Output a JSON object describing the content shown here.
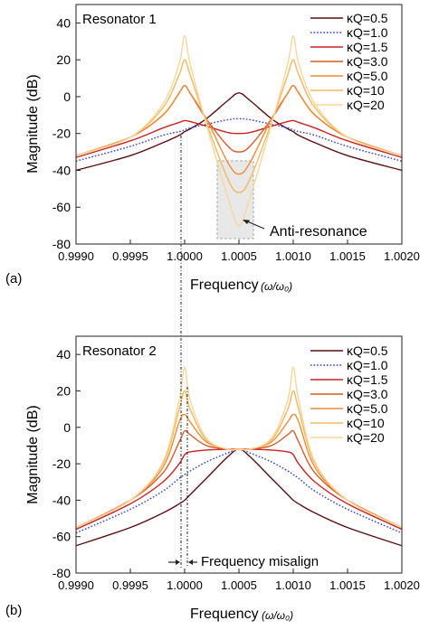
{
  "chart_data": [
    {
      "type": "line",
      "panel_label": "(a)",
      "title": "Resonator 1",
      "xlabel": "Frequency",
      "xlabel_unit": "(ω/ω₀)",
      "ylabel": "Magnitude (dB)",
      "xlim": [
        0.999,
        1.002
      ],
      "ylim": [
        -80,
        50
      ],
      "xticks": [
        "0.9990",
        "0.9995",
        "1.0000",
        "1.0005",
        "1.0010",
        "1.0015",
        "1.0020"
      ],
      "yticks": [
        "-80",
        "-60",
        "-40",
        "-20",
        "0",
        "20",
        "40"
      ],
      "grid": false,
      "legend_position": "top-right",
      "annotation": "Anti-resonance",
      "x": [
        0.999,
        0.9995,
        0.9998,
        0.99995,
        1.0,
        1.00005,
        1.0002,
        1.0004,
        1.0005,
        1.0006,
        1.0008,
        1.00095,
        1.001,
        1.00105,
        1.0012,
        1.0015,
        1.002
      ],
      "series": [
        {
          "name": "κQ=0.5",
          "color": "#5c0f0f",
          "dash": "",
          "values": [
            -40,
            -32,
            -25,
            -21,
            -19,
            -17.5,
            -12,
            -2,
            2,
            -2,
            -12,
            -17.5,
            -19,
            -21,
            -25,
            -32,
            -40
          ]
        },
        {
          "name": "κQ=1.0",
          "color": "#2f3fd6",
          "dash": "1.6,2",
          "values": [
            -35,
            -27,
            -21,
            -19,
            -18,
            -17,
            -15,
            -12.5,
            -12,
            -12.5,
            -15,
            -17,
            -18,
            -19,
            -21,
            -27,
            -35
          ]
        },
        {
          "name": "κQ=1.5",
          "color": "#cc2222",
          "dash": "",
          "values": [
            -33,
            -24,
            -17,
            -14,
            -13,
            -13.5,
            -16,
            -19.5,
            -20,
            -19.5,
            -16,
            -13.5,
            -13,
            -14,
            -17,
            -24,
            -33
          ]
        },
        {
          "name": "κQ=3.0",
          "color": "#d95a2a",
          "dash": "",
          "values": [
            -32,
            -22,
            -10,
            2,
            6,
            2,
            -12,
            -27,
            -30,
            -27,
            -12,
            2,
            6,
            2,
            -10,
            -22,
            -32
          ]
        },
        {
          "name": "κQ=5.0",
          "color": "#f08c35",
          "dash": "",
          "values": [
            -32,
            -22,
            -10,
            2,
            6,
            2,
            -12,
            -36,
            -42,
            -36,
            -12,
            2,
            6,
            2,
            -10,
            -22,
            -32
          ]
        },
        {
          "name": "κQ=10",
          "color": "#f5b85f",
          "dash": "",
          "values": [
            -32,
            -22,
            -6,
            12,
            20,
            12,
            -14,
            -45,
            -52,
            -45,
            -14,
            12,
            20,
            12,
            -6,
            -22,
            -32
          ]
        },
        {
          "name": "κQ=20",
          "color": "#f7d79c",
          "dash": "",
          "values": [
            -32,
            -22,
            -4,
            18,
            33,
            18,
            -15,
            -55,
            -70,
            -55,
            -15,
            18,
            33,
            18,
            -4,
            -22,
            -32
          ]
        }
      ]
    },
    {
      "type": "line",
      "panel_label": "(b)",
      "title": "Resonator 2",
      "xlabel": "Frequency",
      "xlabel_unit": "(ω/ω₀)",
      "ylabel": "Magnitude (dB)",
      "xlim": [
        0.999,
        1.002
      ],
      "ylim": [
        -80,
        50
      ],
      "xticks": [
        "0.9990",
        "0.9995",
        "1.0000",
        "1.0005",
        "1.0010",
        "1.0015",
        "1.0020"
      ],
      "yticks": [
        "-80",
        "-60",
        "-40",
        "-20",
        "0",
        "20",
        "40"
      ],
      "grid": false,
      "legend_position": "top-right",
      "annotation": "Frequency misalign",
      "x": [
        0.999,
        0.9995,
        0.9998,
        0.99995,
        1.0,
        1.00005,
        1.0002,
        1.0004,
        1.0005,
        1.0006,
        1.0008,
        1.00095,
        1.001,
        1.00105,
        1.0012,
        1.0015,
        1.002
      ],
      "series": [
        {
          "name": "κQ=0.5",
          "color": "#5c0f0f",
          "dash": "",
          "values": [
            -65,
            -55,
            -47,
            -42,
            -40,
            -37,
            -28,
            -16,
            -12,
            -16,
            -28,
            -37,
            -40,
            -42,
            -47,
            -55,
            -65
          ]
        },
        {
          "name": "κQ=1.0",
          "color": "#2f3fd6",
          "dash": "1.6,2",
          "values": [
            -58,
            -45,
            -35,
            -28,
            -26,
            -24,
            -19,
            -14,
            -12,
            -14,
            -19,
            -24,
            -26,
            -28,
            -35,
            -45,
            -58
          ]
        },
        {
          "name": "κQ=1.5",
          "color": "#cc2222",
          "dash": "",
          "values": [
            -56,
            -42,
            -30,
            -20,
            -15,
            -13.5,
            -12.5,
            -12,
            -12,
            -12,
            -12.5,
            -13.5,
            -15,
            -20,
            -30,
            -42,
            -56
          ]
        },
        {
          "name": "κQ=3.0",
          "color": "#d95a2a",
          "dash": "",
          "values": [
            -55,
            -40,
            -25,
            -8,
            -2,
            -4,
            -10,
            -12,
            -12,
            -12,
            -10,
            -4,
            -2,
            -8,
            -25,
            -40,
            -55
          ]
        },
        {
          "name": "κQ=5.0",
          "color": "#f08c35",
          "dash": "",
          "values": [
            -55,
            -40,
            -22,
            3,
            7,
            3,
            -8,
            -12,
            -12,
            -12,
            -8,
            3,
            7,
            3,
            -22,
            -40,
            -55
          ]
        },
        {
          "name": "κQ=10",
          "color": "#f5b85f",
          "dash": "",
          "values": [
            -55,
            -40,
            -20,
            10,
            20,
            10,
            -7,
            -12,
            -12,
            -12,
            -7,
            10,
            20,
            10,
            -20,
            -40,
            -55
          ]
        },
        {
          "name": "κQ=20",
          "color": "#f7d79c",
          "dash": "",
          "values": [
            -55,
            -40,
            -19,
            15,
            33,
            15,
            -6,
            -12,
            -12,
            -12,
            -6,
            15,
            33,
            15,
            -19,
            -40,
            -55
          ]
        }
      ]
    }
  ]
}
